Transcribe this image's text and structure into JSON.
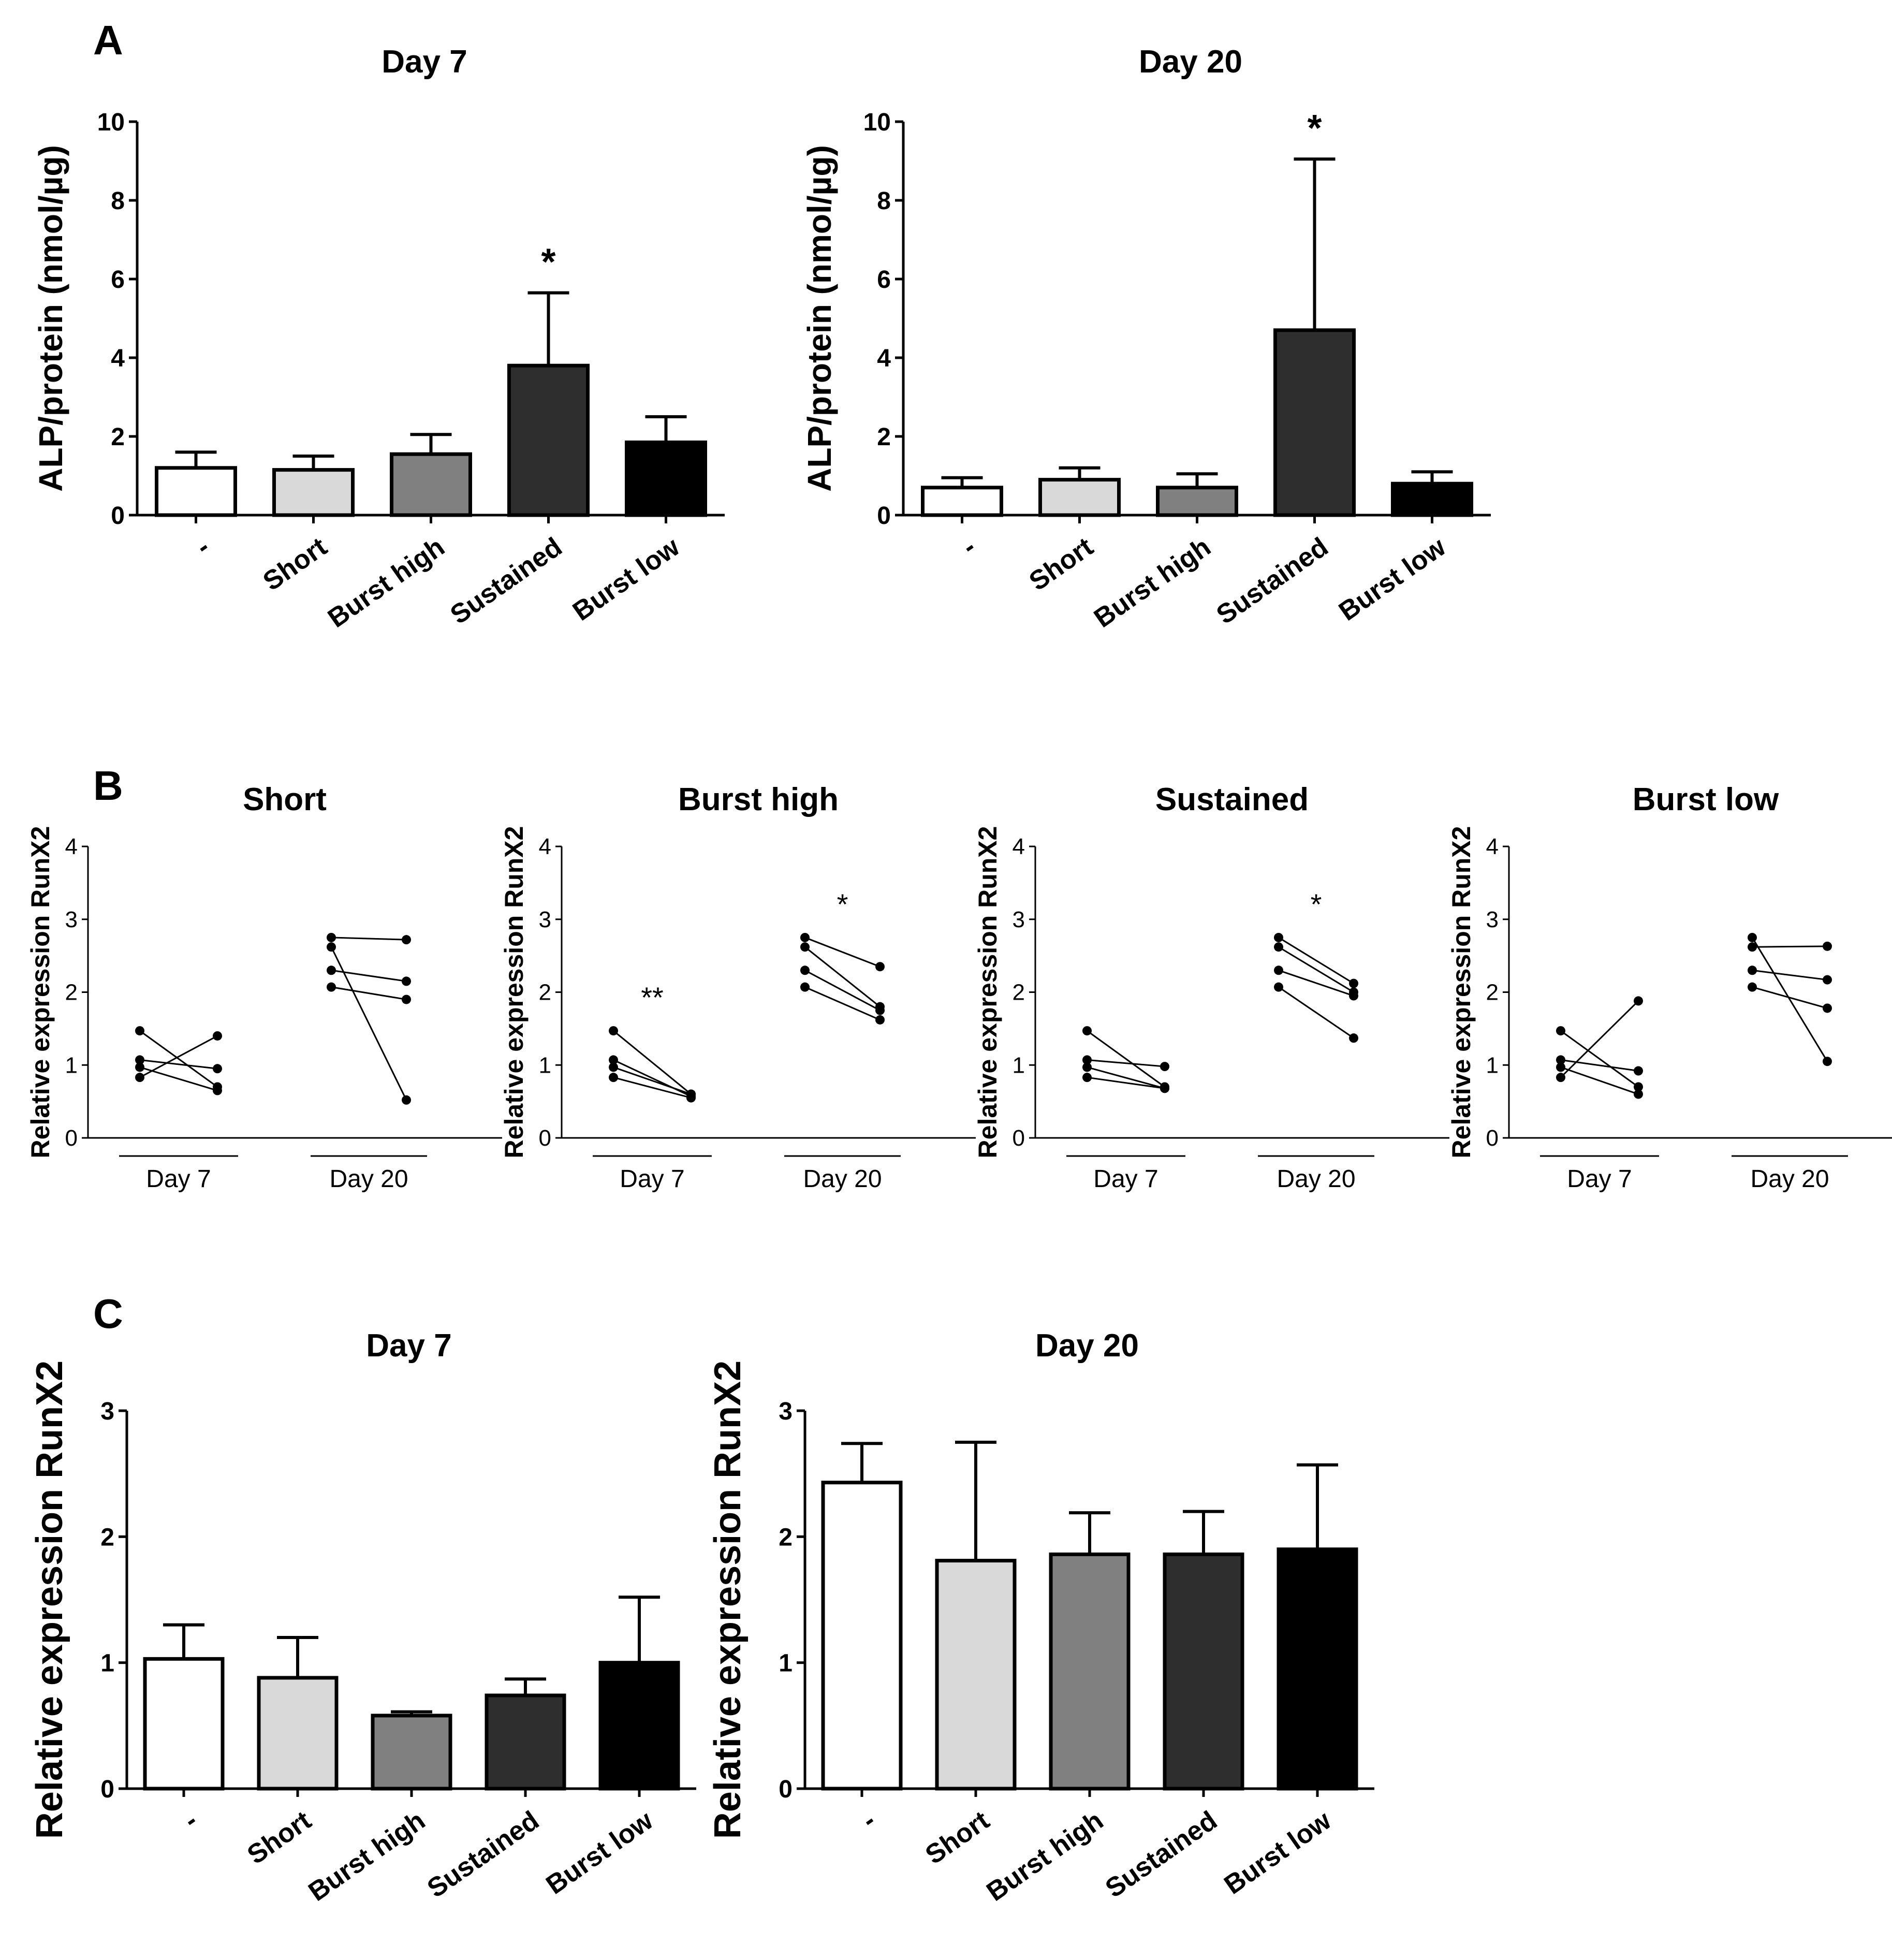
{
  "panels": {
    "A": "A",
    "B": "B",
    "C": "C"
  },
  "categories": [
    "-",
    "Short",
    "Burst high",
    "Sustained",
    "Burst low"
  ],
  "bar_colors": [
    "#ffffff",
    "#d9d9d9",
    "#808080",
    "#2e2e2e",
    "#000000"
  ],
  "chart_data": [
    {
      "type": "bar",
      "panel": "A",
      "title": "Day 7",
      "ylabel": "ALP/protein (nmol/µg)",
      "categories": [
        "-",
        "Short",
        "Burst high",
        "Sustained",
        "Burst low"
      ],
      "values": [
        1.2,
        1.15,
        1.55,
        3.8,
        1.85
      ],
      "errors": [
        0.4,
        0.35,
        0.5,
        1.85,
        0.65
      ],
      "annotations": [
        "",
        "",
        "",
        "*",
        ""
      ],
      "ylim": [
        0,
        10
      ],
      "yticks": [
        "0",
        "2",
        "4",
        "6",
        "8",
        "10"
      ]
    },
    {
      "type": "bar",
      "panel": "A",
      "title": "Day 20",
      "ylabel": "ALP/protein (nmol/µg)",
      "categories": [
        "-",
        "Short",
        "Burst high",
        "Sustained",
        "Burst low"
      ],
      "values": [
        0.7,
        0.9,
        0.7,
        4.7,
        0.8
      ],
      "errors": [
        0.25,
        0.3,
        0.35,
        4.35,
        0.3
      ],
      "annotations": [
        "",
        "",
        "",
        "*",
        ""
      ],
      "ylim": [
        0,
        10
      ],
      "yticks": [
        "0",
        "2",
        "4",
        "6",
        "8",
        "10"
      ]
    },
    {
      "type": "line",
      "panel": "B",
      "title": "Short",
      "ylabel": "Relative expression RunX2",
      "groups": [
        "Day 7",
        "Day 20"
      ],
      "pairs": [
        [
          [
            1.47,
            0.7
          ],
          [
            1.07,
            0.95
          ],
          [
            0.97,
            0.65
          ],
          [
            0.83,
            1.4
          ]
        ],
        [
          [
            2.75,
            2.72
          ],
          [
            2.62,
            0.52
          ],
          [
            2.3,
            2.15
          ],
          [
            2.07,
            1.9
          ]
        ]
      ],
      "annotations": [
        "",
        ""
      ],
      "ylim": [
        0,
        4
      ],
      "yticks": [
        "0",
        "1",
        "2",
        "3",
        "4"
      ]
    },
    {
      "type": "line",
      "panel": "B",
      "title": "Burst high",
      "ylabel": "Relative expression RunX2",
      "groups": [
        "Day 7",
        "Day 20"
      ],
      "pairs": [
        [
          [
            1.47,
            0.6
          ],
          [
            1.07,
            0.57
          ],
          [
            0.97,
            0.6
          ],
          [
            0.83,
            0.55
          ]
        ],
        [
          [
            2.75,
            2.35
          ],
          [
            2.62,
            1.8
          ],
          [
            2.3,
            1.75
          ],
          [
            2.07,
            1.62
          ]
        ]
      ],
      "annotations": [
        "**",
        "*"
      ],
      "ylim": [
        0,
        4
      ],
      "yticks": [
        "0",
        "1",
        "2",
        "3",
        "4"
      ]
    },
    {
      "type": "line",
      "panel": "B",
      "title": "Sustained",
      "ylabel": "Relative expression RunX2",
      "groups": [
        "Day 7",
        "Day 20"
      ],
      "pairs": [
        [
          [
            1.47,
            0.7
          ],
          [
            1.07,
            0.98
          ],
          [
            0.97,
            0.68
          ],
          [
            0.83,
            0.68
          ]
        ],
        [
          [
            2.75,
            2.12
          ],
          [
            2.62,
            2.0
          ],
          [
            2.3,
            1.95
          ],
          [
            2.07,
            1.37
          ]
        ]
      ],
      "annotations": [
        "",
        "*"
      ],
      "ylim": [
        0,
        4
      ],
      "yticks": [
        "0",
        "1",
        "2",
        "3",
        "4"
      ]
    },
    {
      "type": "line",
      "panel": "B",
      "title": "Burst low",
      "ylabel": "Relative expression RunX2",
      "groups": [
        "Day 7",
        "Day 20"
      ],
      "pairs": [
        [
          [
            1.47,
            0.7
          ],
          [
            1.07,
            0.92
          ],
          [
            0.97,
            0.6
          ],
          [
            0.83,
            1.88
          ]
        ],
        [
          [
            2.75,
            1.05
          ],
          [
            2.62,
            2.63
          ],
          [
            2.3,
            2.17
          ],
          [
            2.07,
            1.78
          ]
        ]
      ],
      "annotations": [
        "",
        ""
      ],
      "ylim": [
        0,
        4
      ],
      "yticks": [
        "0",
        "1",
        "2",
        "3",
        "4"
      ]
    },
    {
      "type": "bar",
      "panel": "C",
      "title": "Day 7",
      "ylabel": "Relative expression RunX2",
      "categories": [
        "-",
        "Short",
        "Burst high",
        "Sustained",
        "Burst low"
      ],
      "values": [
        1.03,
        0.88,
        0.58,
        0.74,
        1.0
      ],
      "errors": [
        0.27,
        0.32,
        0.03,
        0.13,
        0.52
      ],
      "annotations": [
        "",
        "",
        "",
        "",
        ""
      ],
      "ylim": [
        0,
        3
      ],
      "yticks": [
        "0",
        "1",
        "2",
        "3"
      ]
    },
    {
      "type": "bar",
      "panel": "C",
      "title": "Day 20",
      "ylabel": "Relative expression RunX2",
      "categories": [
        "-",
        "Short",
        "Burst high",
        "Sustained",
        "Burst low"
      ],
      "values": [
        2.43,
        1.81,
        1.86,
        1.86,
        1.9
      ],
      "errors": [
        0.31,
        0.94,
        0.33,
        0.34,
        0.67
      ],
      "annotations": [
        "",
        "",
        "",
        "",
        ""
      ],
      "ylim": [
        0,
        3
      ],
      "yticks": [
        "0",
        "1",
        "2",
        "3"
      ]
    }
  ]
}
